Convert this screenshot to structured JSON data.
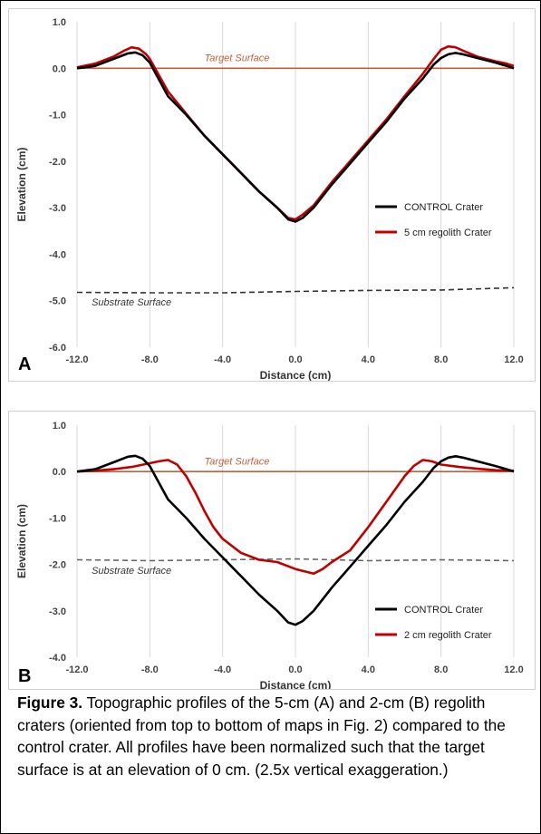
{
  "chart_data": [
    {
      "type": "line",
      "panel_letter": "A",
      "xlabel": "Distance (cm)",
      "ylabel": "Elevation (cm)",
      "xlim": [
        -12,
        12
      ],
      "ylim": [
        -6,
        1
      ],
      "x_ticks": [
        -12,
        -8,
        -4,
        0,
        4,
        8,
        12
      ],
      "y_ticks": [
        1,
        0,
        -1,
        -2,
        -3,
        -4,
        -5,
        -6
      ],
      "x_tick_labels": [
        "-12.0",
        "-8.0",
        "-4.0",
        "0.0",
        "4.0",
        "8.0",
        "12.0"
      ],
      "y_tick_labels": [
        "1.0",
        "0.0",
        "-1.0",
        "-2.0",
        "-3.0",
        "-4.0",
        "-5.0",
        "-6.0"
      ],
      "grid": "vertical",
      "legend_position": "right-center",
      "annotations": [
        {
          "text": "Target Surface",
          "x": -5.0,
          "y": 0.15
        },
        {
          "text": "Substrate Surface",
          "x": -11.2,
          "y": -5.1
        }
      ],
      "series": [
        {
          "name": "CONTROL Crater",
          "color": "#000000",
          "style": "solid",
          "x": [
            -12,
            -11,
            -10,
            -9.2,
            -8.8,
            -8.4,
            -8,
            -7,
            -6,
            -5,
            -4,
            -3,
            -2,
            -1,
            -0.4,
            0,
            0.4,
            1,
            2,
            3,
            4,
            5,
            6,
            7,
            7.6,
            8,
            8.4,
            8.8,
            9.2,
            10,
            11,
            11.6,
            12
          ],
          "y": [
            0,
            0.05,
            0.2,
            0.32,
            0.34,
            0.28,
            0.12,
            -0.6,
            -1.0,
            -1.45,
            -1.85,
            -2.25,
            -2.65,
            -3.0,
            -3.25,
            -3.3,
            -3.22,
            -3.0,
            -2.5,
            -2.05,
            -1.6,
            -1.15,
            -0.65,
            -0.22,
            0.08,
            0.22,
            0.3,
            0.33,
            0.3,
            0.22,
            0.12,
            0.05,
            0
          ]
        },
        {
          "name": "5 cm regolith Crater",
          "color": "#c00000",
          "style": "solid",
          "x": [
            -12,
            -11,
            -10,
            -9.4,
            -9,
            -8.6,
            -8.2,
            -8,
            -7,
            -6,
            -5,
            -4,
            -3,
            -2,
            -1,
            -0.4,
            0,
            0.4,
            1,
            2,
            3,
            4,
            5,
            6,
            7,
            7.6,
            8,
            8.4,
            8.8,
            9.2,
            10,
            11,
            11.6,
            12
          ],
          "y": [
            0.02,
            0.1,
            0.25,
            0.38,
            0.45,
            0.42,
            0.3,
            0.2,
            -0.5,
            -0.98,
            -1.45,
            -1.85,
            -2.25,
            -2.65,
            -3.0,
            -3.22,
            -3.25,
            -3.15,
            -2.95,
            -2.45,
            -2.0,
            -1.55,
            -1.1,
            -0.6,
            -0.12,
            0.2,
            0.4,
            0.47,
            0.45,
            0.38,
            0.25,
            0.15,
            0.1,
            0.05
          ]
        },
        {
          "name": "Target Surface",
          "color": "#c0603a",
          "style": "solid",
          "x": [
            -12,
            -6,
            0,
            6,
            12
          ],
          "y": [
            0,
            0,
            0,
            0,
            0
          ]
        },
        {
          "name": "Substrate Surface",
          "color": "#333333",
          "style": "dashed",
          "x": [
            -12,
            -8,
            -4,
            0,
            4,
            8,
            12
          ],
          "y": [
            -4.82,
            -4.83,
            -4.83,
            -4.8,
            -4.78,
            -4.77,
            -4.72
          ]
        }
      ]
    },
    {
      "type": "line",
      "panel_letter": "B",
      "xlabel": "Distance (cm)",
      "ylabel": "Elevation (cm)",
      "xlim": [
        -12,
        12
      ],
      "ylim": [
        -4,
        1
      ],
      "x_ticks": [
        -12,
        -8,
        -4,
        0,
        4,
        8,
        12
      ],
      "y_ticks": [
        1,
        0,
        -1,
        -2,
        -3,
        -4
      ],
      "x_tick_labels": [
        "-12.0",
        "-8.0",
        "-4.0",
        "0.0",
        "4.0",
        "8.0",
        "12.0"
      ],
      "y_tick_labels": [
        "1.0",
        "0.0",
        "-1.0",
        "-2.0",
        "-3.0",
        "-4.0"
      ],
      "grid": "vertical",
      "legend_position": "bottom-right",
      "annotations": [
        {
          "text": "Target Surface",
          "x": -5.0,
          "y": 0.15
        },
        {
          "text": "Substrate Surface",
          "x": -11.2,
          "y": -2.2
        }
      ],
      "series": [
        {
          "name": "CONTROL Crater",
          "color": "#000000",
          "style": "solid",
          "x": [
            -12,
            -11,
            -10,
            -9.2,
            -8.8,
            -8.4,
            -8,
            -7,
            -6,
            -5,
            -4,
            -3,
            -2,
            -1,
            -0.4,
            0,
            0.4,
            1,
            2,
            3,
            4,
            5,
            6,
            7,
            7.6,
            8,
            8.4,
            8.8,
            9.2,
            10,
            11,
            11.6,
            12
          ],
          "y": [
            0,
            0.05,
            0.2,
            0.32,
            0.34,
            0.28,
            0.12,
            -0.6,
            -1.0,
            -1.45,
            -1.85,
            -2.25,
            -2.65,
            -3.0,
            -3.25,
            -3.3,
            -3.22,
            -3.0,
            -2.5,
            -2.05,
            -1.6,
            -1.15,
            -0.65,
            -0.22,
            0.08,
            0.22,
            0.3,
            0.33,
            0.3,
            0.22,
            0.12,
            0.05,
            0
          ]
        },
        {
          "name": "2 cm regolith Crater",
          "color": "#c00000",
          "style": "solid",
          "x": [
            -12,
            -11,
            -10,
            -9,
            -8,
            -7.5,
            -7,
            -6.5,
            -6,
            -5.5,
            -5,
            -4.5,
            -4,
            -3,
            -2,
            -1,
            0,
            0.5,
            1,
            1.5,
            2,
            3,
            4,
            5,
            6,
            6.5,
            7,
            7.5,
            8,
            9,
            10,
            11,
            12
          ],
          "y": [
            0,
            0.02,
            0.05,
            0.1,
            0.18,
            0.22,
            0.25,
            0.15,
            -0.1,
            -0.45,
            -0.85,
            -1.2,
            -1.45,
            -1.75,
            -1.9,
            -1.95,
            -2.1,
            -2.15,
            -2.2,
            -2.1,
            -1.95,
            -1.7,
            -1.2,
            -0.65,
            -0.1,
            0.12,
            0.25,
            0.22,
            0.15,
            0.1,
            0.06,
            0.03,
            0.02
          ]
        },
        {
          "name": "Target Surface",
          "color": "#c0603a",
          "style": "solid",
          "x": [
            -12,
            -6,
            0,
            6,
            12
          ],
          "y": [
            0,
            0,
            0,
            0,
            0
          ]
        },
        {
          "name": "Substrate Surface",
          "color": "#666666",
          "style": "dashed",
          "x": [
            -12,
            -8,
            -4,
            0,
            4,
            8,
            12
          ],
          "y": [
            -1.9,
            -1.92,
            -1.9,
            -1.88,
            -1.92,
            -1.9,
            -1.92
          ]
        }
      ]
    }
  ],
  "caption": {
    "label": "Figure 3.",
    "text": " Topographic profiles of the 5-cm (A) and 2-cm (B) regolith craters (oriented from top to bottom of maps in Fig. 2) compared to the control crater. All profiles have been normalized such that the target surface is at an elevation of 0 cm. (2.5x vertical exaggeration.)"
  }
}
